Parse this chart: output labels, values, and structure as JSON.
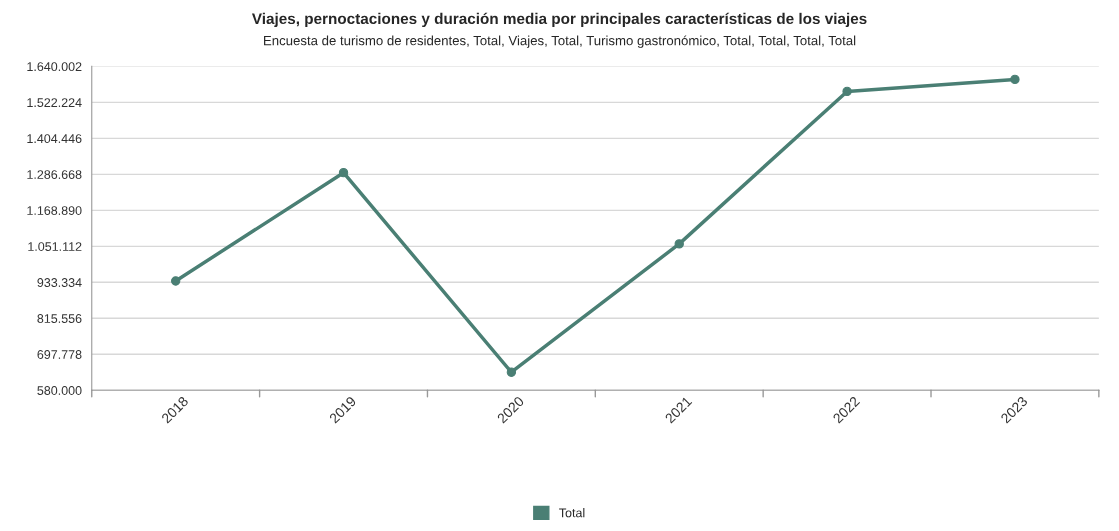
{
  "chart_data": {
    "type": "line",
    "title": "Viajes, pernoctaciones y duración media por principales características de los viajes",
    "subtitle": "Encuesta de turismo de residentes, Total, Viajes, Total, Turismo gastronómico, Total, Total, Total, Total",
    "categories": [
      "2018",
      "2019",
      "2020",
      "2021",
      "2022",
      "2023"
    ],
    "series": [
      {
        "name": "Total",
        "color": "#4a7f74",
        "values": [
          937700,
          1292100,
          639100,
          1059100,
          1558000,
          1597300
        ]
      }
    ],
    "ylim": [
      580000,
      1640002
    ],
    "yticks": [
      {
        "value": 580000,
        "label": "580.000"
      },
      {
        "value": 697778,
        "label": "697.778"
      },
      {
        "value": 815556,
        "label": "815.556"
      },
      {
        "value": 933334,
        "label": "933.334"
      },
      {
        "value": 1051112,
        "label": "1.051.112"
      },
      {
        "value": 1168890,
        "label": "1.168.890"
      },
      {
        "value": 1286668,
        "label": "1.286.668"
      },
      {
        "value": 1404446,
        "label": "1.404.446"
      },
      {
        "value": 1522224,
        "label": "1.522.224"
      },
      {
        "value": 1640002,
        "label": "1.640.002"
      }
    ],
    "grid": "y",
    "legend": "bottom",
    "marker": "circle",
    "line_style": "solid"
  }
}
